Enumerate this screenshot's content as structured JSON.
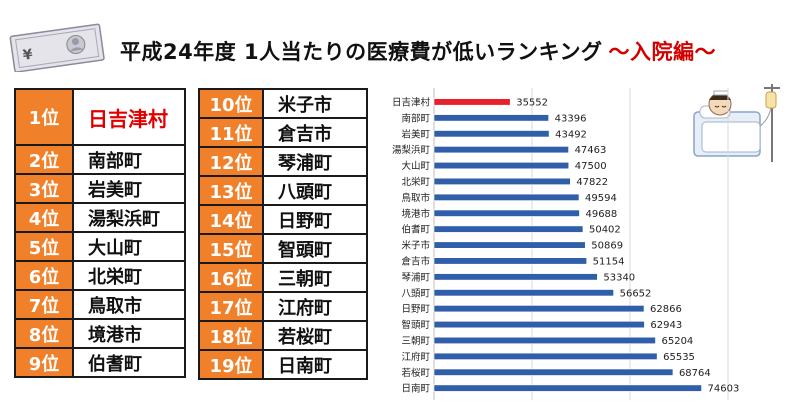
{
  "title": {
    "main": "平成24年度 1人当たりの医療費が低いランキング",
    "sub": "～入院編～"
  },
  "ranking": {
    "left": [
      {
        "rank": "1位",
        "name": "日吉津村"
      },
      {
        "rank": "2位",
        "name": "南部町"
      },
      {
        "rank": "3位",
        "name": "岩美町"
      },
      {
        "rank": "4位",
        "name": "湯梨浜町"
      },
      {
        "rank": "5位",
        "name": "大山町"
      },
      {
        "rank": "6位",
        "name": "北栄町"
      },
      {
        "rank": "7位",
        "name": "鳥取市"
      },
      {
        "rank": "8位",
        "name": "境港市"
      },
      {
        "rank": "9位",
        "name": "伯耆町"
      }
    ],
    "right": [
      {
        "rank": "10位",
        "name": "米子市"
      },
      {
        "rank": "11位",
        "name": "倉吉市"
      },
      {
        "rank": "12位",
        "name": "琴浦町"
      },
      {
        "rank": "13位",
        "name": "八頭町"
      },
      {
        "rank": "14位",
        "name": "日野町"
      },
      {
        "rank": "15位",
        "name": "智頭町"
      },
      {
        "rank": "16位",
        "name": "三朝町"
      },
      {
        "rank": "17位",
        "name": "江府町"
      },
      {
        "rank": "18位",
        "name": "若桜町"
      },
      {
        "rank": "19位",
        "name": "日南町"
      }
    ]
  },
  "chart_data": {
    "type": "bar",
    "orientation": "horizontal",
    "categories": [
      "日吉津村",
      "南部町",
      "岩美町",
      "湯梨浜町",
      "大山町",
      "北栄町",
      "鳥取市",
      "境港市",
      "伯耆町",
      "米子市",
      "倉吉市",
      "琴浦町",
      "八頭町",
      "日野町",
      "智頭町",
      "三朝町",
      "江府町",
      "若桜町",
      "日南町"
    ],
    "values": [
      35552,
      43396,
      43492,
      47463,
      47500,
      47822,
      49594,
      49688,
      50402,
      50869,
      51154,
      53340,
      56652,
      62866,
      62943,
      65204,
      65535,
      68764,
      74603
    ],
    "xlim": [
      20000,
      80000
    ],
    "xticks": [
      20000,
      40000,
      60000,
      80000
    ],
    "unit": "円",
    "grid": true,
    "colors": {
      "highlight": "#e8202a",
      "bar": "#2f5fa8"
    }
  }
}
